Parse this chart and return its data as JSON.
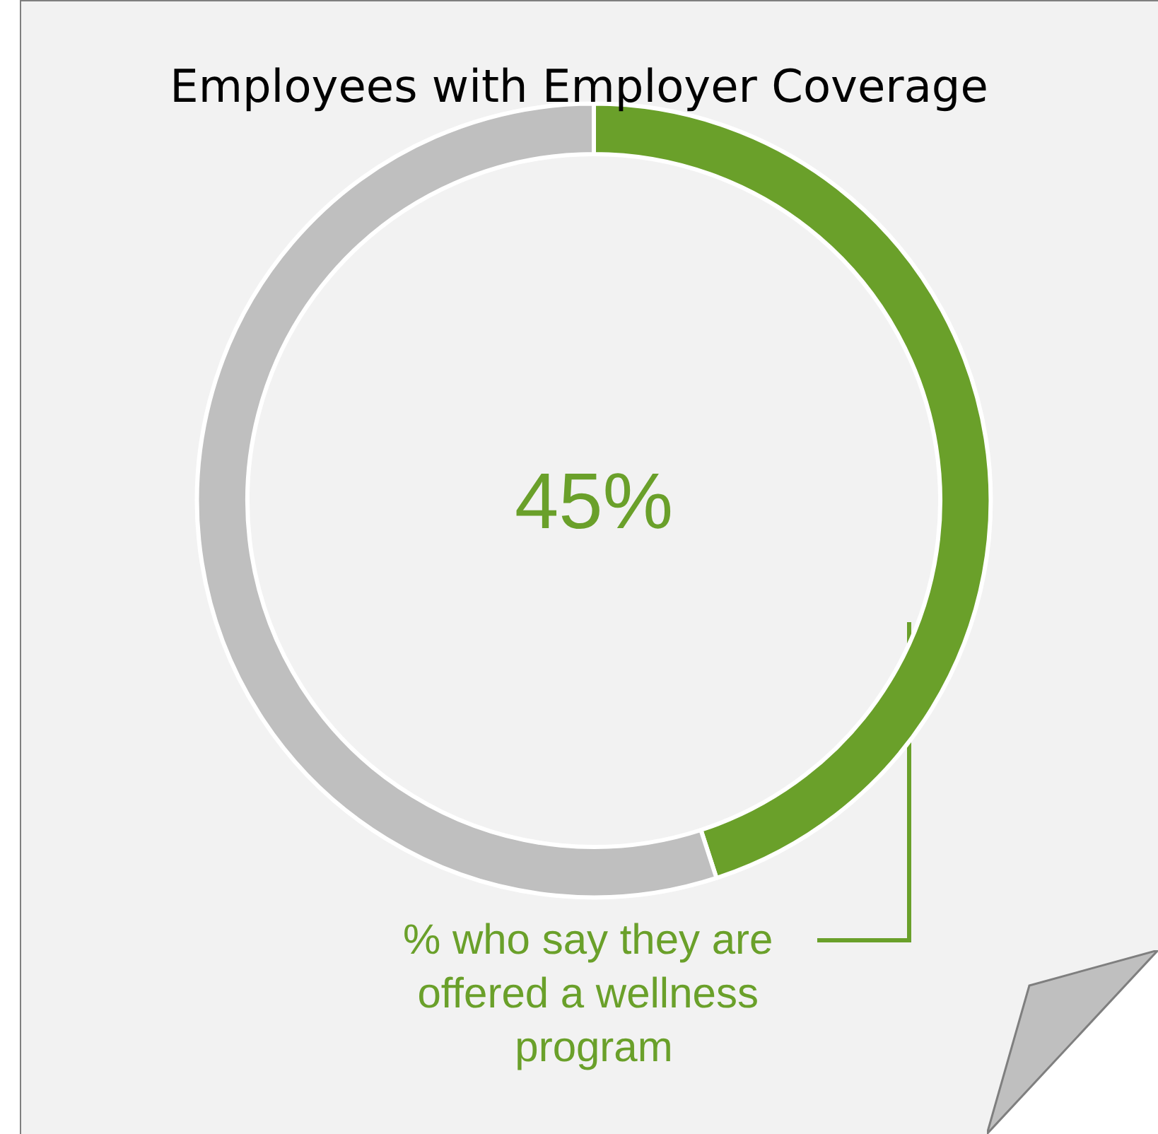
{
  "chart_data": {
    "type": "donut",
    "title": "Employees with Employer Coverage",
    "categories": [
      "% who say they are offered a wellness program",
      null
    ],
    "values": [
      45,
      55
    ],
    "colors": [
      "#6aa02a",
      "#bfbfbf"
    ],
    "value_labels": [
      "45%",
      null
    ],
    "legend": false
  }
}
